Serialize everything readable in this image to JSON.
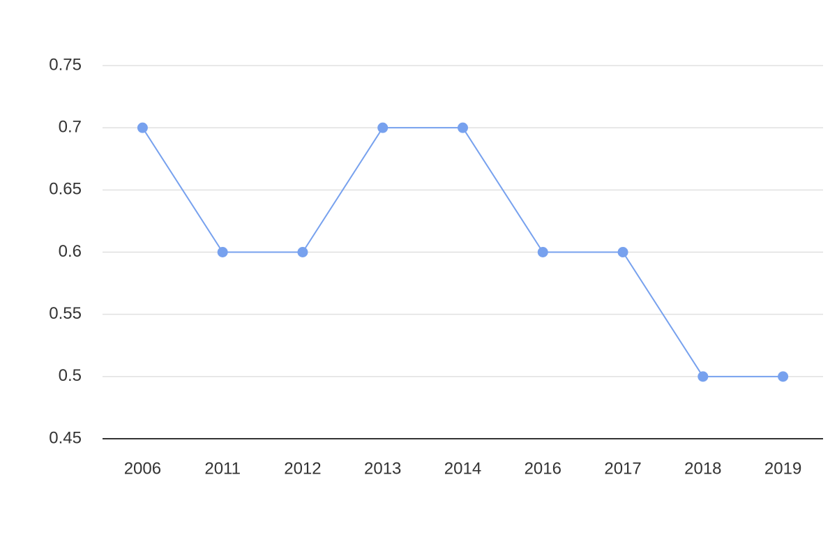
{
  "chart_data": {
    "type": "line",
    "categories": [
      "2006",
      "2011",
      "2012",
      "2013",
      "2014",
      "2016",
      "2017",
      "2018",
      "2019"
    ],
    "values": [
      0.7,
      0.6,
      0.6,
      0.7,
      0.7,
      0.6,
      0.6,
      0.5,
      0.5
    ],
    "color": "#77a1ee",
    "ylim": [
      0.45,
      0.75
    ],
    "yticks": [
      0.45,
      0.5,
      0.55,
      0.6,
      0.65,
      0.7,
      0.75
    ],
    "grid": true
  }
}
